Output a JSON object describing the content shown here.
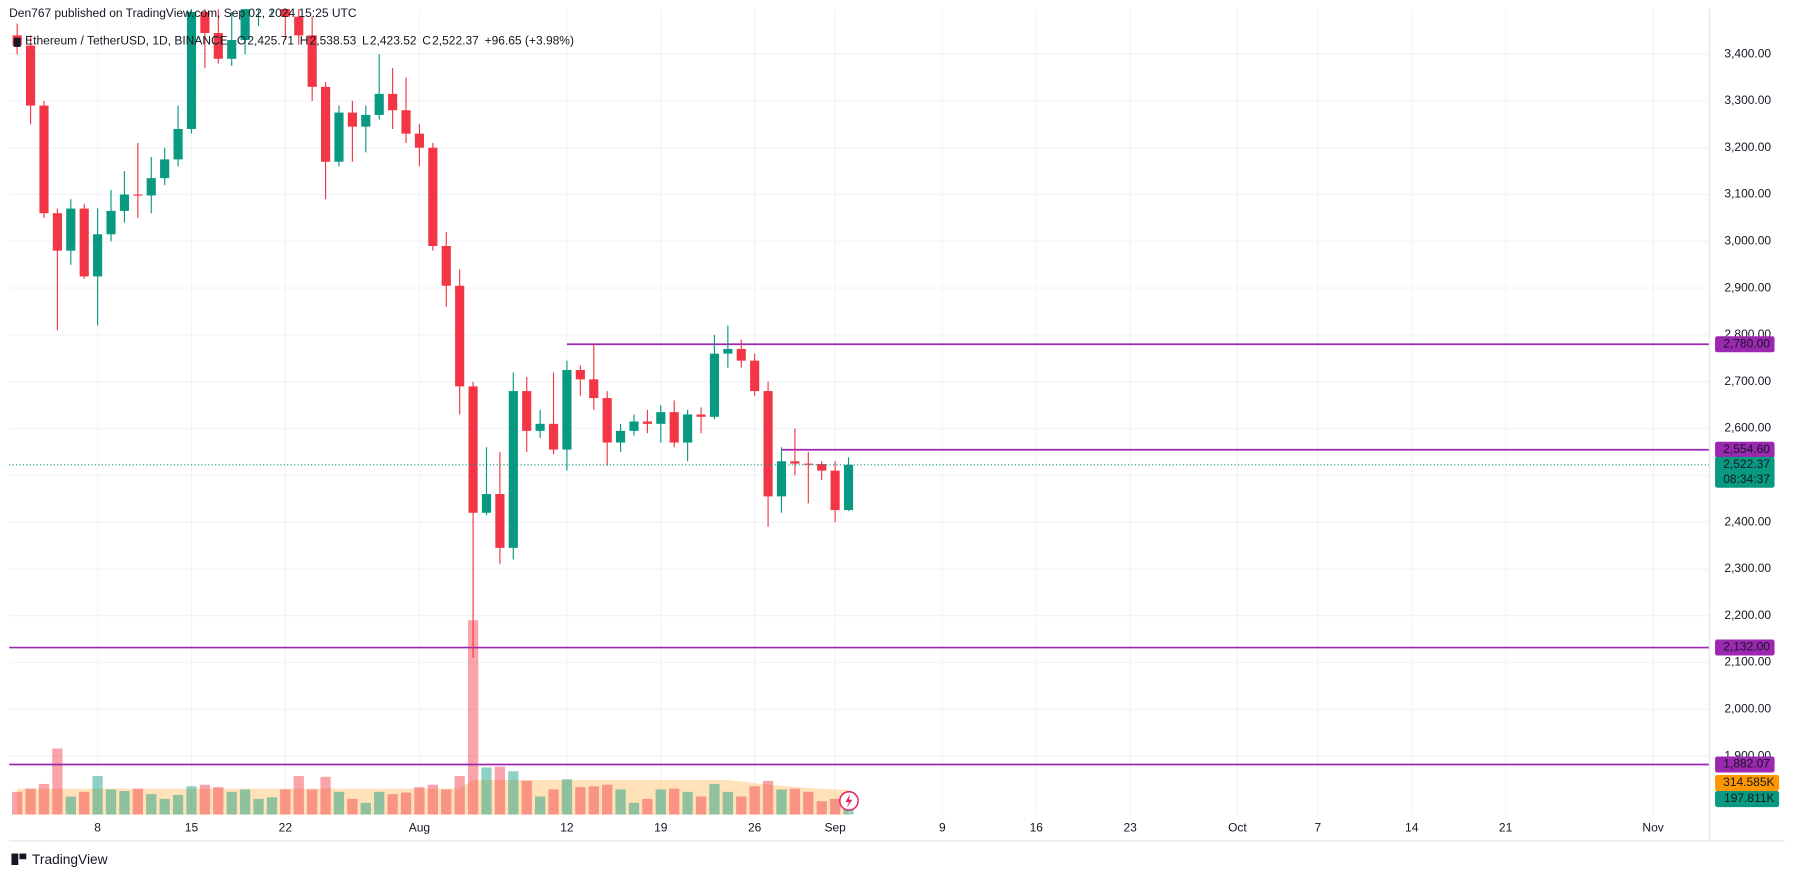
{
  "chart_data": {
    "type": "candlestick",
    "published": "Den767 published on TradingView.com, Sep 02, 2024 15:25 UTC",
    "symbol": "Ethereum / TetherUSD, 1D, BINANCE",
    "ohlc_legend": [
      {
        "label": "O",
        "value": "2,425.71"
      },
      {
        "label": "H",
        "value": "2,538.53"
      },
      {
        "label": "L",
        "value": "2,423.52"
      },
      {
        "label": "C",
        "value": "2,522.37"
      }
    ],
    "change": "+96.65 (+3.98%)",
    "footer": "TradingView",
    "x": [
      "07-02",
      "07-03",
      "07-04",
      "07-05",
      "07-06",
      "07-07",
      "07-08",
      "07-09",
      "07-10",
      "07-11",
      "07-12",
      "07-13",
      "07-14",
      "07-15",
      "07-16",
      "07-17",
      "07-18",
      "07-19",
      "07-20",
      "07-21",
      "07-22",
      "07-23",
      "07-24",
      "07-25",
      "07-26",
      "07-27",
      "07-28",
      "07-29",
      "07-30",
      "07-31",
      "08-01",
      "08-02",
      "08-03",
      "08-04",
      "08-05",
      "08-06",
      "08-07",
      "08-08",
      "08-09",
      "08-10",
      "08-11",
      "08-12",
      "08-13",
      "08-14",
      "08-15",
      "08-16",
      "08-17",
      "08-18",
      "08-19",
      "08-20",
      "08-21",
      "08-22",
      "08-23",
      "08-24",
      "08-25",
      "08-26",
      "08-27",
      "08-28",
      "08-29",
      "08-30",
      "08-31",
      "09-01",
      "09-02"
    ],
    "open": [
      3440,
      3418,
      3290,
      3060,
      2980,
      3070,
      2925,
      3015,
      3065,
      3100,
      3098,
      3135,
      3175,
      3240,
      3490,
      3445,
      3390,
      3430,
      3510,
      3520,
      3530,
      3480,
      3440,
      3330,
      3170,
      3275,
      3245,
      3270,
      3315,
      3280,
      3230,
      3200,
      2990,
      2905,
      2690,
      2420,
      2460,
      2345,
      2680,
      2595,
      2610,
      2555,
      2725,
      2705,
      2665,
      2570,
      2595,
      2615,
      2610,
      2635,
      2570,
      2630,
      2625,
      2760,
      2770,
      2745,
      2680,
      2455,
      2530,
      2525,
      2524,
      2510,
      2425.71
    ],
    "high": [
      3465,
      3440,
      3300,
      3070,
      3090,
      3080,
      3070,
      3110,
      3150,
      3210,
      3180,
      3200,
      3290,
      3510,
      3500,
      3520,
      3490,
      3560,
      3540,
      3560,
      3545,
      3540,
      3480,
      3340,
      3290,
      3300,
      3290,
      3400,
      3370,
      3350,
      3250,
      3210,
      3020,
      2940,
      2700,
      2560,
      2550,
      2720,
      2710,
      2640,
      2720,
      2745,
      2735,
      2780,
      2680,
      2610,
      2630,
      2640,
      2650,
      2660,
      2640,
      2645,
      2800,
      2820,
      2790,
      2760,
      2700,
      2560,
      2600,
      2550,
      2530,
      2530,
      2538.53
    ],
    "low": [
      3400,
      3250,
      3050,
      2810,
      2950,
      2920,
      2820,
      3000,
      3040,
      3050,
      3060,
      3120,
      3160,
      3230,
      3370,
      3380,
      3375,
      3400,
      3460,
      3480,
      3430,
      3420,
      3300,
      3090,
      3160,
      3170,
      3190,
      3260,
      3240,
      3210,
      3160,
      2980,
      2860,
      2630,
      2110,
      2415,
      2310,
      2320,
      2550,
      2580,
      2545,
      2510,
      2670,
      2640,
      2520,
      2550,
      2585,
      2590,
      2570,
      2560,
      2530,
      2590,
      2620,
      2730,
      2730,
      2670,
      2390,
      2420,
      2500,
      2440,
      2490,
      2400,
      2423.52
    ],
    "close": [
      3418,
      3290,
      3060,
      2980,
      3070,
      2925,
      3015,
      3065,
      3100,
      3098,
      3135,
      3175,
      3240,
      3490,
      3445,
      3390,
      3430,
      3510,
      3520,
      3530,
      3480,
      3440,
      3330,
      3170,
      3275,
      3245,
      3270,
      3315,
      3280,
      3230,
      3200,
      2990,
      2905,
      2690,
      2420,
      2460,
      2345,
      2680,
      2595,
      2610,
      2555,
      2725,
      2705,
      2665,
      2570,
      2595,
      2615,
      2610,
      2635,
      2570,
      2630,
      2625,
      2760,
      2770,
      2745,
      2680,
      2455,
      2530,
      2525,
      2524,
      2510,
      2425.72,
      2522.37
    ],
    "up_color": "#089981",
    "down_color": "#f23645",
    "volume": [
      290,
      330,
      390,
      840,
      230,
      290,
      490,
      320,
      300,
      330,
      260,
      200,
      250,
      360,
      380,
      350,
      290,
      320,
      200,
      220,
      320,
      490,
      320,
      480,
      290,
      200,
      150,
      290,
      260,
      280,
      350,
      380,
      320,
      490,
      2470,
      600,
      610,
      550,
      430,
      230,
      320,
      450,
      350,
      360,
      380,
      320,
      150,
      200,
      320,
      330,
      290,
      230,
      390,
      290,
      230,
      360,
      430,
      320,
      330,
      290,
      170,
      200,
      197.811
    ],
    "volume_label": "197.811K",
    "volume_ma": [
      330,
      330,
      330,
      330,
      330,
      330,
      330,
      330,
      330,
      330,
      330,
      330,
      330,
      330,
      330,
      330,
      330,
      330,
      330,
      330,
      330,
      330,
      330,
      330,
      330,
      330,
      330,
      330,
      330,
      330,
      330,
      330,
      330,
      330,
      440,
      440,
      440,
      440,
      440,
      440,
      440,
      440,
      440,
      440,
      440,
      440,
      440,
      440,
      440,
      440,
      440,
      440,
      440,
      440,
      420,
      400,
      380,
      370,
      350,
      340,
      330,
      320,
      314.585
    ],
    "volume_ma_label": "314.585K",
    "volume_ma_color": "#ff9800",
    "volume_lim": [
      0,
      2500
    ],
    "ylim": [
      1775,
      3496
    ],
    "yticks": [
      {
        "value": 1900,
        "label": "1,900.00"
      },
      {
        "value": 2000,
        "label": "2,000.00"
      },
      {
        "value": 2100,
        "label": "2,100.00"
      },
      {
        "value": 2200,
        "label": "2,200.00"
      },
      {
        "value": 2300,
        "label": "2,300.00"
      },
      {
        "value": 2400,
        "label": "2,400.00"
      },
      {
        "value": 2500,
        "label": "2,500.00"
      },
      {
        "value": 2600,
        "label": "2,600.00"
      },
      {
        "value": 2700,
        "label": "2,700.00"
      },
      {
        "value": 2800,
        "label": "2,800.00"
      },
      {
        "value": 2900,
        "label": "2,900.00"
      },
      {
        "value": 3000,
        "label": "3,000.00"
      },
      {
        "value": 3100,
        "label": "3,100.00"
      },
      {
        "value": 3200,
        "label": "3,200.00"
      },
      {
        "value": 3300,
        "label": "3,300.00"
      },
      {
        "value": 3400,
        "label": "3,400.00"
      }
    ],
    "xticks": [
      {
        "value": "07-08",
        "label": "8"
      },
      {
        "value": "07-15",
        "label": "15"
      },
      {
        "value": "07-22",
        "label": "22"
      },
      {
        "value": "08-01",
        "label": "Aug"
      },
      {
        "value": "08-12",
        "label": "12"
      },
      {
        "value": "08-19",
        "label": "19"
      },
      {
        "value": "08-26",
        "label": "26"
      },
      {
        "value": "09-01",
        "label": "Sep"
      },
      {
        "value": "09-09",
        "label": "9"
      },
      {
        "value": "09-16",
        "label": "16"
      },
      {
        "value": "09-23",
        "label": "23"
      },
      {
        "value": "10-01",
        "label": "Oct"
      },
      {
        "value": "10-07",
        "label": "7"
      },
      {
        "value": "10-14",
        "label": "14"
      },
      {
        "value": "10-21",
        "label": "21"
      },
      {
        "value": "11-01",
        "label": "Nov"
      }
    ],
    "grid": true,
    "hlines": [
      {
        "value": 2780,
        "label": "2,780.00",
        "start": "08-12"
      },
      {
        "value": 2554.6,
        "label": "2,554.60",
        "start": "08-28"
      },
      {
        "value": 2132,
        "label": "2,132.00"
      },
      {
        "value": 1882.07,
        "label": "1,882.07"
      }
    ],
    "hline_color": "#9c27b0",
    "last_price_label": "2,522.37",
    "countdown": "08:34:37"
  }
}
